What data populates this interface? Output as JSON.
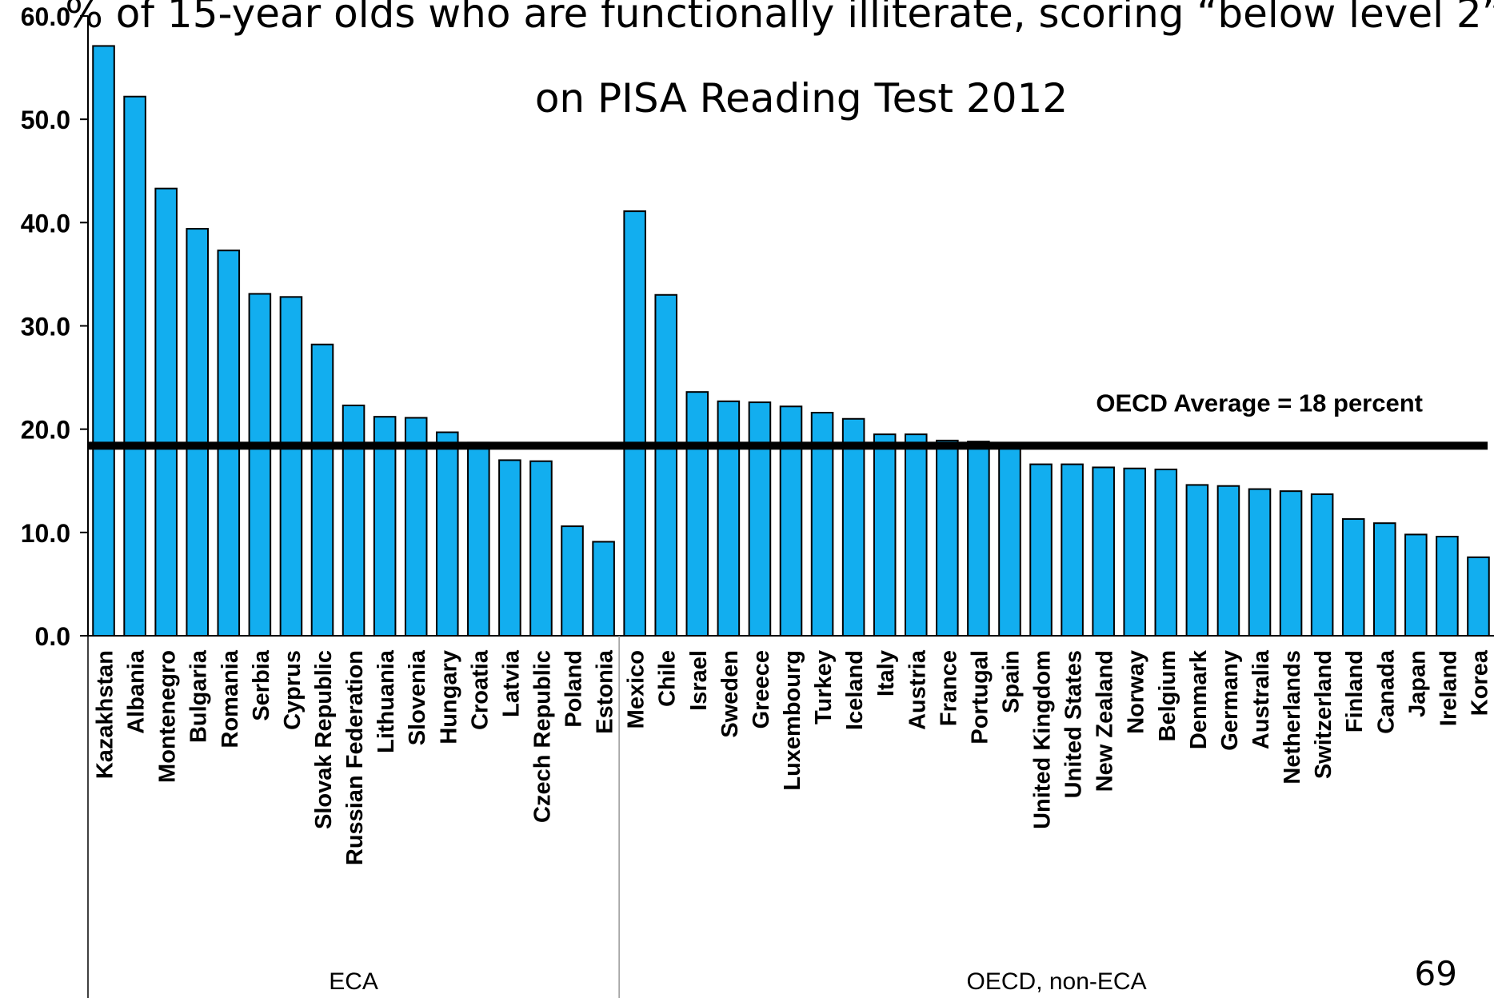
{
  "title_lines": [
    "% of 15-year olds who are functionally illiterate, scoring “below level 2”",
    "on PISA Reading Test 2012"
  ],
  "page_number": "69",
  "colors": {
    "bar": "#12AEEF",
    "bar_outline": "#000000",
    "reference_line": "#000000"
  },
  "chart_data": {
    "type": "bar",
    "title": "% of 15-year olds who are functionally illiterate, scoring “below level 2” on PISA Reading Test 2012",
    "xlabel": "",
    "ylabel": "",
    "ylim": [
      0,
      60
    ],
    "yticks": [
      "0.0",
      "10.0",
      "20.0",
      "30.0",
      "40.0",
      "50.0",
      "60.0"
    ],
    "grid": false,
    "legend": "none",
    "categories": [
      "Kazakhstan",
      "Albania",
      "Montenegro",
      "Bulgaria",
      "Romania",
      "Serbia",
      "Cyprus",
      "Slovak Republic",
      "Russian Federation",
      "Lithuania",
      "Slovenia",
      "Hungary",
      "Croatia",
      "Latvia",
      "Czech Republic",
      "Poland",
      "Estonia",
      "Mexico",
      "Chile",
      "Israel",
      "Sweden",
      "Greece",
      "Luxembourg",
      "Turkey",
      "Iceland",
      "Italy",
      "Austria",
      "France",
      "Portugal",
      "Spain",
      "United Kingdom",
      "United States",
      "New Zealand",
      "Norway",
      "Belgium",
      "Denmark",
      "Germany",
      "Australia",
      "Netherlands",
      "Switzerland",
      "Finland",
      "Canada",
      "Japan",
      "Ireland",
      "Korea"
    ],
    "values": [
      57.1,
      52.2,
      43.3,
      39.4,
      37.3,
      33.1,
      32.8,
      28.2,
      22.3,
      21.2,
      21.1,
      19.7,
      18.7,
      17.0,
      16.9,
      10.6,
      9.1,
      41.1,
      33.0,
      23.6,
      22.7,
      22.6,
      22.2,
      21.6,
      21.0,
      19.5,
      19.5,
      18.9,
      18.8,
      18.3,
      16.6,
      16.6,
      16.3,
      16.2,
      16.1,
      14.6,
      14.5,
      14.2,
      14.0,
      13.7,
      11.3,
      10.9,
      9.8,
      9.6,
      7.6
    ],
    "groups": [
      {
        "label": "ECA",
        "count": 17
      },
      {
        "label": "OECD, non-ECA",
        "count": 28
      }
    ],
    "reference_line": {
      "value": 18.4,
      "label": "OECD Average = 18 percent"
    }
  }
}
